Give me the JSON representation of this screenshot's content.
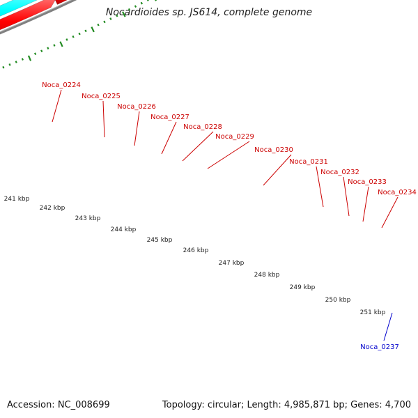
{
  "title": "Nocardioides sp. JS614, complete genome",
  "footer": {
    "accession": "Accession: NC_008699",
    "summary": "Topology: circular; Length: 4,985,871 bp; Genes: 4,700"
  },
  "colors": {
    "forward_cds": "#ff0000",
    "reverse_cds": "#0000ff",
    "trna": "#00ffff",
    "rrna_grey": "#c0c0c0",
    "orange": "#ff9900",
    "tan": "#c8bb82",
    "dark_grey": "#606060",
    "axis": "#808080",
    "ticks": "#228b22",
    "label_forward": "#cc0000",
    "label_reverse": "#0000cc"
  },
  "scale_labels": [
    "241 kbp",
    "242 kbp",
    "243 kbp",
    "244 kbp",
    "245 kbp",
    "246 kbp",
    "247 kbp",
    "248 kbp",
    "249 kbp",
    "250 kbp",
    "251 kbp"
  ],
  "gene_labels": [
    {
      "text": "Noca_0224",
      "strand": "forward"
    },
    {
      "text": "Noca_0225",
      "strand": "forward"
    },
    {
      "text": "Noca_0226",
      "strand": "forward"
    },
    {
      "text": "Noca_0227",
      "strand": "forward"
    },
    {
      "text": "Noca_0228",
      "strand": "forward"
    },
    {
      "text": "Noca_0229",
      "strand": "forward"
    },
    {
      "text": "Noca_0230",
      "strand": "forward"
    },
    {
      "text": "Noca_0231",
      "strand": "forward"
    },
    {
      "text": "Noca_0232",
      "strand": "forward"
    },
    {
      "text": "Noca_0233",
      "strand": "forward"
    },
    {
      "text": "Noca_0234",
      "strand": "forward"
    },
    {
      "text": "Noca_0237",
      "strand": "reverse"
    }
  ]
}
